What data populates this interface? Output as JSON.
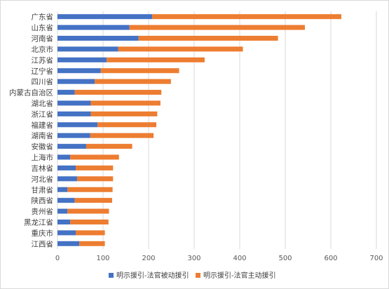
{
  "chart_data": {
    "type": "bar",
    "orientation": "horizontal",
    "stacked": true,
    "categories": [
      "广东省",
      "山东省",
      "河南省",
      "北京市",
      "江苏省",
      "辽宁省",
      "四川省",
      "内蒙古自治区",
      "湖北省",
      "浙江省",
      "福建省",
      "湖南省",
      "安徽省",
      "上海市",
      "吉林省",
      "河北省",
      "甘肃省",
      "陕西省",
      "贵州省",
      "黑龙江省",
      "重庆市",
      "江西省"
    ],
    "series": [
      {
        "name": "明示援引-法官被动援引",
        "color": "#4472c4",
        "values": [
          208,
          158,
          178,
          133,
          108,
          95,
          82,
          38,
          73,
          73,
          88,
          72,
          63,
          28,
          40,
          43,
          22,
          38,
          22,
          28,
          40,
          48
        ]
      },
      {
        "name": "明示援引-法官主动援引",
        "color": "#ed7d31",
        "values": [
          415,
          385,
          306,
          274,
          215,
          172,
          167,
          190,
          153,
          146,
          129,
          139,
          101,
          107,
          82,
          79,
          99,
          82,
          91,
          84,
          64,
          56
        ]
      }
    ],
    "xlim": [
      0,
      700
    ],
    "xticks": [
      "0",
      "100",
      "200",
      "300",
      "400",
      "500",
      "600",
      "700"
    ],
    "grid": true,
    "legend_position": "bottom"
  }
}
